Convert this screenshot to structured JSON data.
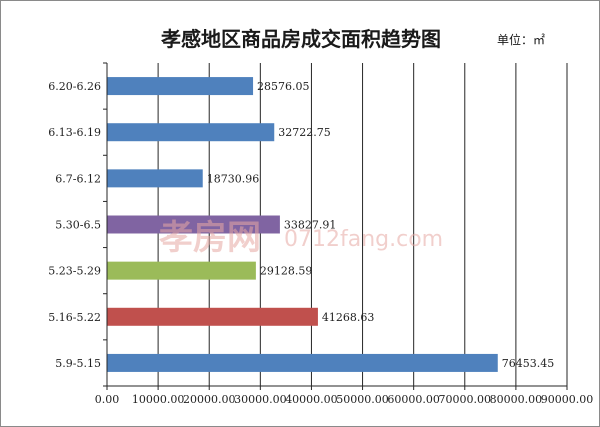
{
  "chart_data": {
    "type": "bar",
    "orientation": "horizontal",
    "title": "孝感地区商品房成交面积趋势图",
    "unit": "单位：㎡",
    "categories": [
      "6.20-6.26",
      "6.13-6.19",
      "6.7-6.12",
      "5.30-6.5",
      "5.23-5.29",
      "5.16-5.22",
      "5.9-5.15"
    ],
    "values": [
      28576.05,
      32722.75,
      18730.96,
      33827.91,
      29128.59,
      41268.63,
      76453.45
    ],
    "value_labels": [
      "28576.05",
      "32722.75",
      "18730.96",
      "33827.91",
      "29128.59",
      "41268.63",
      "76453.45"
    ],
    "bar_colors": [
      "#4f81bd",
      "#4f81bd",
      "#4f81bd",
      "#8064a2",
      "#9bbb59",
      "#c0504d",
      "#4f81bd"
    ],
    "xlim": [
      0,
      90000
    ],
    "xticks": [
      0,
      10000,
      20000,
      30000,
      40000,
      50000,
      60000,
      70000,
      80000,
      90000
    ],
    "xtick_labels": [
      "0.00",
      "10000.00",
      "20000.00",
      "30000.00",
      "40000.00",
      "50000.00",
      "60000.00",
      "70000.00",
      "80000.00",
      "90000.00"
    ],
    "grid": true,
    "legend": "none"
  },
  "watermark": {
    "brand": "孝房网",
    "url": "0712fang.com"
  }
}
